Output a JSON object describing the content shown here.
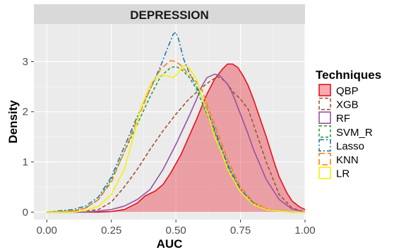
{
  "chart_data": {
    "type": "density",
    "facet_title": "DEPRESSION",
    "xlabel": "AUC",
    "ylabel": "Density",
    "xlim": [
      -0.05,
      1.0
    ],
    "ylim": [
      -0.15,
      3.75
    ],
    "x_ticks": [
      0.0,
      0.25,
      0.5,
      0.75,
      1.0
    ],
    "x_tick_labels": [
      "0.00",
      "0.25",
      "0.50",
      "0.75",
      "1.00"
    ],
    "y_ticks": [
      0,
      1,
      2,
      3
    ],
    "y_tick_labels": [
      "0",
      "1",
      "2",
      "3"
    ],
    "grid": true,
    "legend": {
      "title": "Techniques",
      "placement": "right",
      "entries": [
        "QBP",
        "XGB",
        "RF",
        "SVM_R",
        "Lasso",
        "KNN",
        "LR"
      ]
    },
    "series": [
      {
        "name": "QBP",
        "color": "#e8101f",
        "fill": "#e8101f",
        "fill_opacity": 0.35,
        "dash": "solid",
        "x": [
          0.0,
          0.1,
          0.2,
          0.25,
          0.3,
          0.35,
          0.38,
          0.42,
          0.45,
          0.48,
          0.52,
          0.55,
          0.58,
          0.6,
          0.62,
          0.65,
          0.68,
          0.7,
          0.72,
          0.74,
          0.76,
          0.78,
          0.8,
          0.82,
          0.85,
          0.88,
          0.9,
          0.93,
          0.95,
          0.98,
          1.0
        ],
        "y": [
          0.0,
          0.0,
          0.0,
          0.01,
          0.05,
          0.18,
          0.32,
          0.42,
          0.55,
          0.78,
          1.15,
          1.5,
          1.85,
          2.1,
          2.35,
          2.65,
          2.85,
          2.95,
          2.95,
          2.88,
          2.72,
          2.52,
          2.25,
          1.95,
          1.5,
          1.0,
          0.7,
          0.38,
          0.22,
          0.1,
          0.05
        ]
      },
      {
        "name": "XGB",
        "color": "#a0522d",
        "dash": "5,3",
        "x": [
          0.0,
          0.15,
          0.2,
          0.25,
          0.3,
          0.35,
          0.4,
          0.45,
          0.5,
          0.55,
          0.6,
          0.63,
          0.66,
          0.68,
          0.7,
          0.72,
          0.75,
          0.78,
          0.8,
          0.85,
          0.9,
          0.95,
          1.0
        ],
        "y": [
          0.0,
          0.02,
          0.05,
          0.2,
          0.5,
          0.85,
          1.25,
          1.62,
          1.95,
          2.25,
          2.48,
          2.6,
          2.7,
          2.65,
          2.55,
          2.4,
          2.25,
          2.05,
          1.75,
          1.0,
          0.35,
          0.08,
          0.0
        ]
      },
      {
        "name": "RF",
        "color": "#9b4fa8",
        "dash": "solid",
        "x": [
          0.0,
          0.15,
          0.2,
          0.25,
          0.3,
          0.35,
          0.4,
          0.45,
          0.5,
          0.55,
          0.58,
          0.6,
          0.62,
          0.65,
          0.67,
          0.7,
          0.72,
          0.75,
          0.78,
          0.8,
          0.85,
          0.9,
          0.95,
          1.0
        ],
        "y": [
          0.0,
          0.0,
          0.02,
          0.05,
          0.12,
          0.25,
          0.45,
          0.85,
          1.35,
          1.9,
          2.25,
          2.5,
          2.68,
          2.75,
          2.72,
          2.55,
          2.35,
          1.95,
          1.55,
          1.25,
          0.65,
          0.25,
          0.06,
          0.0
        ]
      },
      {
        "name": "SVM_R",
        "color": "#2ca02c",
        "dash": "4,3",
        "x": [
          0.0,
          0.1,
          0.15,
          0.2,
          0.25,
          0.3,
          0.35,
          0.4,
          0.44,
          0.48,
          0.5,
          0.52,
          0.55,
          0.58,
          0.6,
          0.65,
          0.7,
          0.75,
          0.8,
          0.85,
          0.9,
          0.95,
          1.0
        ],
        "y": [
          0.0,
          0.02,
          0.08,
          0.25,
          0.65,
          1.2,
          1.75,
          2.3,
          2.7,
          2.88,
          2.9,
          2.85,
          2.7,
          2.45,
          2.2,
          1.6,
          0.9,
          0.4,
          0.15,
          0.05,
          0.02,
          0.0,
          0.0
        ]
      },
      {
        "name": "Lasso",
        "color": "#1f77b4",
        "dash": "7,3,2,3",
        "x": [
          0.0,
          0.1,
          0.15,
          0.2,
          0.25,
          0.3,
          0.35,
          0.4,
          0.44,
          0.47,
          0.49,
          0.5,
          0.51,
          0.53,
          0.55,
          0.58,
          0.6,
          0.65,
          0.7,
          0.75,
          0.8,
          0.85,
          0.9,
          0.95,
          1.0
        ],
        "y": [
          0.0,
          0.05,
          0.12,
          0.3,
          0.7,
          1.3,
          1.9,
          2.45,
          2.9,
          3.3,
          3.55,
          3.58,
          3.45,
          3.05,
          2.8,
          2.5,
          2.3,
          1.65,
          0.95,
          0.45,
          0.18,
          0.06,
          0.02,
          0.0,
          0.0
        ]
      },
      {
        "name": "KNN",
        "color": "#ff7f0e",
        "dash": "8,4",
        "x": [
          0.0,
          0.1,
          0.15,
          0.2,
          0.25,
          0.3,
          0.35,
          0.4,
          0.44,
          0.48,
          0.5,
          0.52,
          0.54,
          0.57,
          0.6,
          0.63,
          0.65,
          0.7,
          0.75,
          0.8,
          0.85,
          0.9,
          0.95,
          1.0
        ],
        "y": [
          0.0,
          0.02,
          0.08,
          0.25,
          0.6,
          1.2,
          1.85,
          2.45,
          2.85,
          3.02,
          3.0,
          2.92,
          2.8,
          2.65,
          2.45,
          2.0,
          1.75,
          1.05,
          0.5,
          0.2,
          0.06,
          0.02,
          0.0,
          0.0
        ]
      },
      {
        "name": "LR",
        "color": "#f2f20a",
        "dash": "solid",
        "x": [
          0.0,
          0.1,
          0.15,
          0.2,
          0.25,
          0.3,
          0.33,
          0.36,
          0.4,
          0.43,
          0.46,
          0.49,
          0.51,
          0.53,
          0.55,
          0.58,
          0.6,
          0.63,
          0.65,
          0.68,
          0.7,
          0.75,
          0.8,
          0.85,
          0.9,
          0.95,
          1.0
        ],
        "y": [
          0.0,
          0.0,
          0.03,
          0.12,
          0.35,
          0.85,
          1.4,
          2.0,
          2.55,
          2.72,
          2.72,
          2.68,
          2.78,
          2.92,
          2.88,
          2.65,
          2.3,
          1.85,
          1.5,
          1.15,
          0.85,
          0.4,
          0.15,
          0.05,
          0.02,
          0.0,
          0.0
        ]
      }
    ]
  }
}
